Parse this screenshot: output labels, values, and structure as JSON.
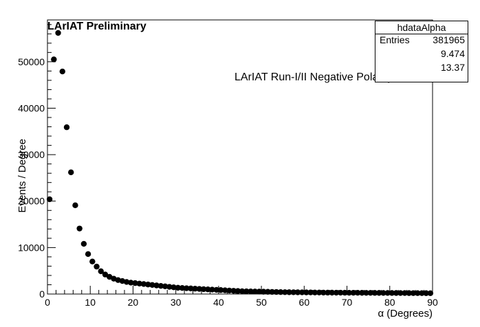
{
  "header": {
    "title": "LArIAT Preliminary",
    "annotation": "LArIAT Run-I/II Negative Polarity"
  },
  "stats": {
    "name": "hdataAlpha",
    "rows": [
      {
        "label": "Entries",
        "value": "381965"
      },
      {
        "label": "",
        "value": "9.474"
      },
      {
        "label": "",
        "value": "13.37"
      }
    ]
  },
  "chart_data": {
    "type": "scatter",
    "title": "LArIAT Preliminary",
    "xlabel": "α (Degrees)",
    "ylabel": "Events / Degree",
    "xlim": [
      0,
      90
    ],
    "ylim": [
      0,
      59000
    ],
    "xticks": [
      0,
      10,
      20,
      30,
      40,
      50,
      60,
      70,
      80,
      90
    ],
    "yticks": [
      0,
      10000,
      20000,
      30000,
      40000,
      50000
    ],
    "grid": false,
    "marker_color": "#000000",
    "series": [
      {
        "x": [
          0.5,
          1.5,
          2.5,
          3.5,
          4.5,
          5.5,
          6.5,
          7.5,
          8.5,
          9.5,
          10.5,
          11.5,
          12.5,
          13.5,
          14.5,
          15.5,
          16.5,
          17.5,
          18.5,
          19.5,
          20.5,
          21.5,
          22.5,
          23.5,
          24.5,
          25.5,
          26.5,
          27.5,
          28.5,
          29.5,
          30.5,
          31.5,
          32.5,
          33.5,
          34.5,
          35.5,
          36.5,
          37.5,
          38.5,
          39.5,
          40.5,
          41.5,
          42.5,
          43.5,
          44.5,
          45.5,
          46.5,
          47.5,
          48.5,
          49.5,
          50.5,
          51.5,
          52.5,
          53.5,
          54.5,
          55.5,
          56.5,
          57.5,
          58.5,
          59.5,
          60.5,
          61.5,
          62.5,
          63.5,
          64.5,
          65.5,
          66.5,
          67.5,
          68.5,
          69.5,
          70.5,
          71.5,
          72.5,
          73.5,
          74.5,
          75.5,
          76.5,
          77.5,
          78.5,
          79.5,
          80.5,
          81.5,
          82.5,
          83.5,
          84.5,
          85.5,
          86.5,
          87.5,
          88.5,
          89.5
        ],
        "values": [
          20400,
          50500,
          56200,
          47900,
          35900,
          26200,
          19100,
          14100,
          10800,
          8600,
          7000,
          5900,
          4900,
          4200,
          3700,
          3300,
          3000,
          2800,
          2600,
          2450,
          2350,
          2250,
          2150,
          2050,
          1950,
          1850,
          1750,
          1650,
          1550,
          1450,
          1350,
          1300,
          1250,
          1200,
          1150,
          1100,
          1050,
          1000,
          950,
          900,
          850,
          800,
          750,
          700,
          650,
          600,
          580,
          560,
          540,
          520,
          500,
          480,
          460,
          440,
          420,
          400,
          390,
          380,
          370,
          360,
          350,
          340,
          330,
          320,
          310,
          300,
          295,
          290,
          285,
          280,
          275,
          270,
          265,
          260,
          255,
          250,
          245,
          240,
          235,
          230,
          225,
          220,
          215,
          210,
          205,
          200,
          195,
          190,
          185,
          180
        ]
      }
    ]
  }
}
